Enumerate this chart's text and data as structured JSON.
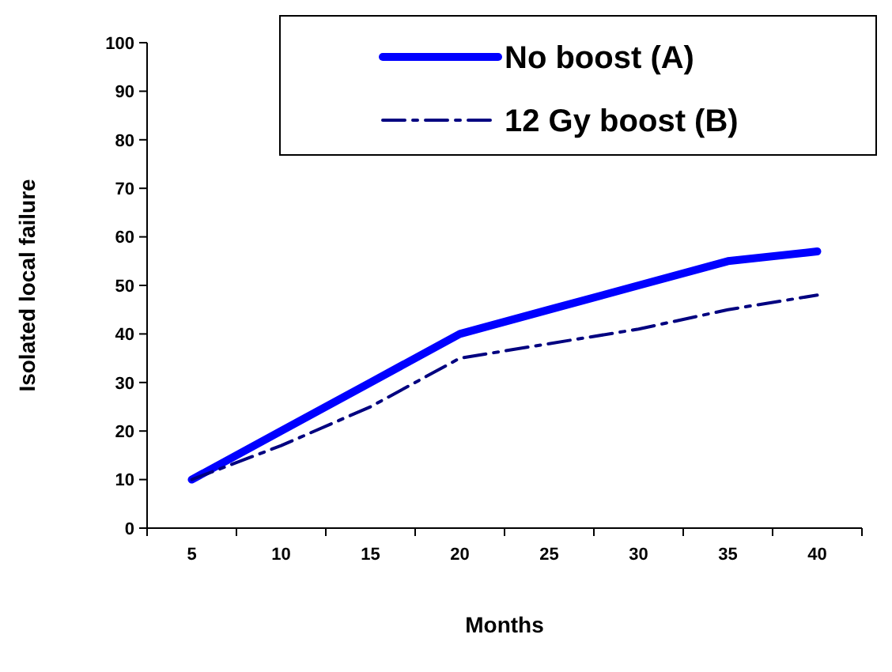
{
  "chart_data": {
    "type": "line",
    "xlabel": "Months",
    "ylabel": "Isolated local failure",
    "categories": [
      "5",
      "10",
      "15",
      "20",
      "25",
      "30",
      "35",
      "40"
    ],
    "ylim": [
      0,
      100
    ],
    "yticks": [
      0,
      10,
      20,
      30,
      40,
      50,
      60,
      70,
      80,
      90,
      100
    ],
    "legend": "top right",
    "grid": false,
    "series": [
      {
        "name": "No boost (A)",
        "color": "#0000ff",
        "line_style": "solid",
        "values": [
          10,
          20,
          30,
          40,
          45,
          50,
          55,
          57
        ]
      },
      {
        "name": "12 Gy boost (B)",
        "color": "#000080",
        "line_style": "dashed",
        "values": [
          10,
          17,
          25,
          35,
          38,
          41,
          45,
          48
        ]
      }
    ]
  }
}
